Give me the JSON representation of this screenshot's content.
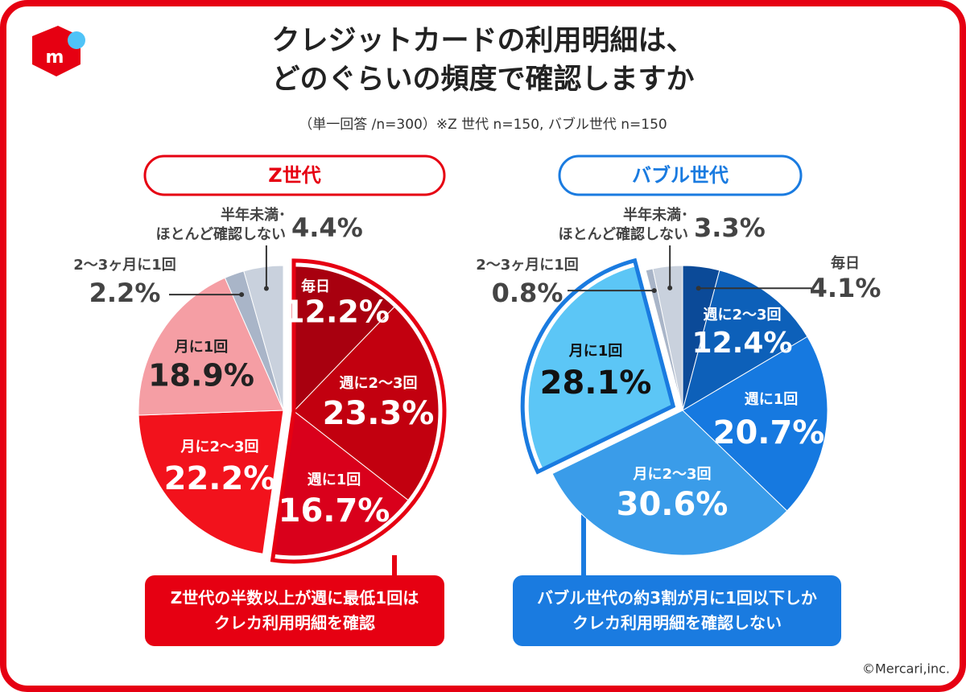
{
  "title": "クレジットカードの利用明細は、\nどのぐらいの頻度で確認しますか",
  "subtitle": "（単一回答 /n=300）※Z 世代 n=150, バブル世代 n=150",
  "logo_text": "m",
  "copyright": "©Mercari,inc.",
  "chart_data": [
    {
      "type": "pie",
      "title": "Z世代",
      "categories": [
        "毎日",
        "週に2〜3回",
        "週に1回",
        "月に2〜3回",
        "月に1回",
        "2〜3ヶ月に1回",
        "半年未満･\nほとんど確認しない"
      ],
      "values": [
        12.2,
        23.3,
        16.7,
        22.2,
        18.9,
        2.2,
        4.4
      ],
      "value_labels": [
        "12.2%",
        "23.3%",
        "16.7%",
        "22.2%",
        "18.9%",
        "2.2%",
        "4.4%"
      ],
      "colors": [
        "#a8000f",
        "#c2000f",
        "#d9001b",
        "#f2121c",
        "#f59ea4",
        "#a9b5c8",
        "#c9d1dd"
      ],
      "highlight_color": "#e60012",
      "exploded": [
        0,
        1,
        2
      ],
      "callout": "Z世代の半数以上が週に最低1回は\nクレカ利用明細を確認"
    },
    {
      "type": "pie",
      "title": "バブル世代",
      "categories": [
        "毎日",
        "週に2〜3回",
        "週に1回",
        "月に2〜3回",
        "月に1回",
        "2〜3ヶ月に1回",
        "半年未満･\nほとんど確認しない"
      ],
      "values": [
        4.1,
        12.4,
        20.7,
        30.6,
        28.1,
        0.8,
        3.3
      ],
      "value_labels": [
        "4.1%",
        "12.4%",
        "20.7%",
        "30.6%",
        "28.1%",
        "0.8%",
        "3.3%"
      ],
      "colors": [
        "#0b4a98",
        "#0d60b9",
        "#1679e0",
        "#3a9ce9",
        "#5cc6f6",
        "#a9b5c8",
        "#c9d1dd"
      ],
      "highlight_color": "#1a7be0",
      "exploded": [
        4
      ],
      "callout": "バブル世代の約3割が月に1回以下しか\nクレカ利用明細を確認しない"
    }
  ]
}
